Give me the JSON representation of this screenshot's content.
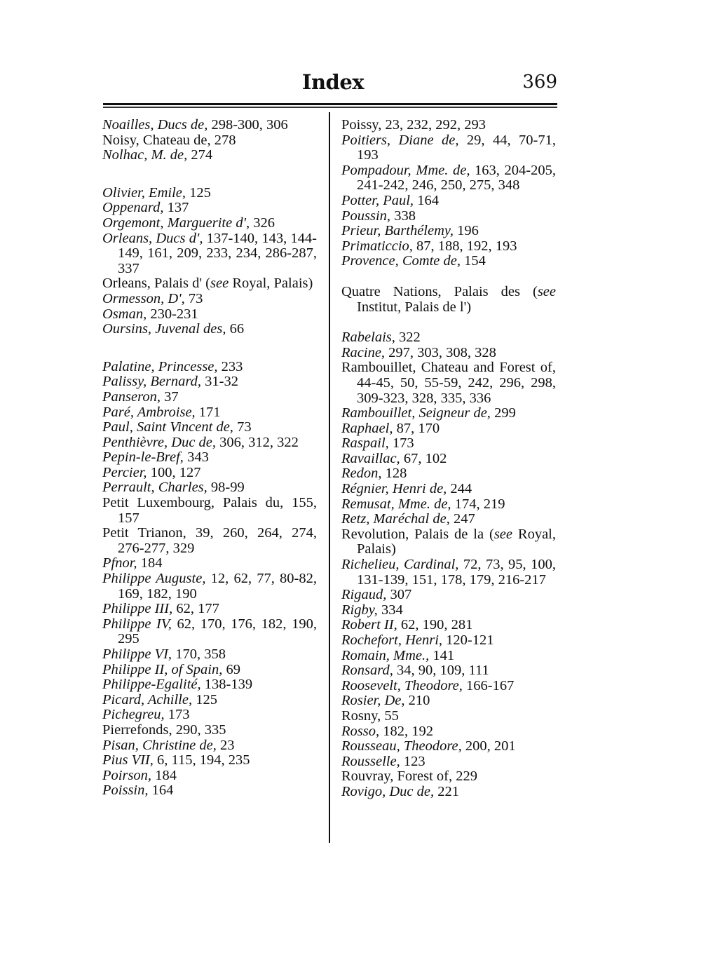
{
  "header": {
    "title": "Index",
    "page_number": "369"
  },
  "columns": [
    {
      "entries": [
        {
          "segments": [
            {
              "text": "Noailles, Ducs de,",
              "italic": true
            },
            {
              "text": " 298-300, 306"
            }
          ]
        },
        {
          "segments": [
            {
              "text": "Noisy, Chateau de, 278"
            }
          ]
        },
        {
          "segments": [
            {
              "text": "Nolhac, M. de,",
              "italic": true
            },
            {
              "text": " 274"
            }
          ]
        },
        {
          "gap": true,
          "segments": [
            {
              "text": "Olivier, Emile,",
              "italic": true
            },
            {
              "text": " 125"
            }
          ]
        },
        {
          "segments": [
            {
              "text": "Oppenard,",
              "italic": true
            },
            {
              "text": " 137"
            }
          ]
        },
        {
          "segments": [
            {
              "text": "Orgemont, Marguerite d',",
              "italic": true
            },
            {
              "text": " 326"
            }
          ]
        },
        {
          "segments": [
            {
              "text": "Orleans, Ducs d',",
              "italic": true
            },
            {
              "text": " 137-140, 143, 144-149, 161, 209, 233, 234, 286-287, 337"
            }
          ]
        },
        {
          "segments": [
            {
              "text": "Orleans, Palais d' ("
            },
            {
              "text": "see",
              "italic": true
            },
            {
              "text": " Royal, Palais)"
            }
          ]
        },
        {
          "segments": [
            {
              "text": "Ormesson, D',",
              "italic": true
            },
            {
              "text": " 73"
            }
          ]
        },
        {
          "segments": [
            {
              "text": "Osman,",
              "italic": true
            },
            {
              "text": " 230-231"
            }
          ]
        },
        {
          "segments": [
            {
              "text": "Oursins, Juvenal des,",
              "italic": true
            },
            {
              "text": " 66"
            }
          ]
        },
        {
          "gap": true,
          "segments": [
            {
              "text": "Palatine, Princesse,",
              "italic": true
            },
            {
              "text": " 233"
            }
          ]
        },
        {
          "segments": [
            {
              "text": "Palissy, Bernard,",
              "italic": true
            },
            {
              "text": " 31-32"
            }
          ]
        },
        {
          "segments": [
            {
              "text": "Panseron,",
              "italic": true
            },
            {
              "text": " 37"
            }
          ]
        },
        {
          "segments": [
            {
              "text": "Paré, Ambroise,",
              "italic": true
            },
            {
              "text": " 171"
            }
          ]
        },
        {
          "segments": [
            {
              "text": "Paul, Saint Vincent de,",
              "italic": true
            },
            {
              "text": " 73"
            }
          ]
        },
        {
          "segments": [
            {
              "text": "Penthièvre, Duc de,",
              "italic": true
            },
            {
              "text": " 306, 312, 322"
            }
          ]
        },
        {
          "segments": [
            {
              "text": "Pepin-le-Bref,",
              "italic": true
            },
            {
              "text": " 343"
            }
          ]
        },
        {
          "segments": [
            {
              "text": "Percier,",
              "italic": true
            },
            {
              "text": " 100, 127"
            }
          ]
        },
        {
          "segments": [
            {
              "text": "Perrault, Charles,",
              "italic": true
            },
            {
              "text": " 98-99"
            }
          ]
        },
        {
          "segments": [
            {
              "text": "Petit Luxembourg, Palais du, 155, 157"
            }
          ]
        },
        {
          "segments": [
            {
              "text": "Petit Trianon, 39, 260, 264, 274, 276-277, 329"
            }
          ]
        },
        {
          "segments": [
            {
              "text": "Pfnor,",
              "italic": true
            },
            {
              "text": " 184"
            }
          ]
        },
        {
          "segments": [
            {
              "text": "Philippe Auguste,",
              "italic": true
            },
            {
              "text": " 12, 62, 77, 80-82, 169, 182, 190"
            }
          ]
        },
        {
          "segments": [
            {
              "text": "Philippe III,",
              "italic": true
            },
            {
              "text": " 62, 177"
            }
          ]
        },
        {
          "segments": [
            {
              "text": "Philippe IV,",
              "italic": true
            },
            {
              "text": " 62, 170, 176, 182, 190, 295"
            }
          ]
        },
        {
          "segments": [
            {
              "text": "Philippe VI,",
              "italic": true
            },
            {
              "text": " 170, 358"
            }
          ]
        },
        {
          "segments": [
            {
              "text": "Philippe II, of Spain,",
              "italic": true
            },
            {
              "text": " 69"
            }
          ]
        },
        {
          "segments": [
            {
              "text": "Philippe-Egalité,",
              "italic": true
            },
            {
              "text": " 138-139"
            }
          ]
        },
        {
          "segments": [
            {
              "text": "Picard, Achille,",
              "italic": true
            },
            {
              "text": " 125"
            }
          ]
        },
        {
          "segments": [
            {
              "text": "Pichegreu,",
              "italic": true
            },
            {
              "text": " 173"
            }
          ]
        },
        {
          "segments": [
            {
              "text": "Pierrefonds, 290, 335"
            }
          ]
        },
        {
          "segments": [
            {
              "text": "Pisan, Christine de,",
              "italic": true
            },
            {
              "text": " 23"
            }
          ]
        },
        {
          "segments": [
            {
              "text": "Pius VII,",
              "italic": true
            },
            {
              "text": " 6, 115, 194, 235"
            }
          ]
        },
        {
          "segments": [
            {
              "text": "Poirson,",
              "italic": true
            },
            {
              "text": " 184"
            }
          ]
        },
        {
          "segments": [
            {
              "text": "Poissin,",
              "italic": true
            },
            {
              "text": " 164"
            }
          ]
        }
      ]
    },
    {
      "entries": [
        {
          "segments": [
            {
              "text": "Poissy, 23, 232, 292, 293"
            }
          ]
        },
        {
          "segments": [
            {
              "text": "Poitiers, Diane de,",
              "italic": true
            },
            {
              "text": " 29, 44, 70-71, 193"
            }
          ]
        },
        {
          "segments": [
            {
              "text": "Pompadour, Mme. de,",
              "italic": true
            },
            {
              "text": " 163, 204-205, 241-242, 246, 250, 275, 348"
            }
          ]
        },
        {
          "segments": [
            {
              "text": "Potter, Paul,",
              "italic": true
            },
            {
              "text": " 164"
            }
          ]
        },
        {
          "segments": [
            {
              "text": "Poussin,",
              "italic": true
            },
            {
              "text": " 338"
            }
          ]
        },
        {
          "segments": [
            {
              "text": "Prieur, Barthélemy,",
              "italic": true
            },
            {
              "text": " 196"
            }
          ]
        },
        {
          "segments": [
            {
              "text": "Primaticcio,",
              "italic": true
            },
            {
              "text": " 87, 188, 192, 193"
            }
          ]
        },
        {
          "segments": [
            {
              "text": "Provence, Comte de,",
              "italic": true
            },
            {
              "text": " 154"
            }
          ]
        },
        {
          "gap1": true,
          "segments": [
            {
              "text": "Quatre Nations, Palais des ("
            },
            {
              "text": "see",
              "italic": true
            },
            {
              "text": " Institut, Palais de l')"
            }
          ]
        },
        {
          "gap1": true,
          "segments": [
            {
              "text": "Rabelais,",
              "italic": true
            },
            {
              "text": " 322"
            }
          ]
        },
        {
          "segments": [
            {
              "text": "Racine,",
              "italic": true
            },
            {
              "text": " 297, 303, 308, 328"
            }
          ]
        },
        {
          "segments": [
            {
              "text": "Rambouillet, Chateau and Forest of, 44-45, 50, 55-59, 242, 296, 298, 309-323, 328, 335, 336"
            }
          ]
        },
        {
          "segments": [
            {
              "text": "Rambouillet, Seigneur de,",
              "italic": true
            },
            {
              "text": " 299"
            }
          ]
        },
        {
          "segments": [
            {
              "text": "Raphael,",
              "italic": true
            },
            {
              "text": " 87, 170"
            }
          ]
        },
        {
          "segments": [
            {
              "text": "Raspail,",
              "italic": true
            },
            {
              "text": " 173"
            }
          ]
        },
        {
          "segments": [
            {
              "text": "Ravaillac,",
              "italic": true
            },
            {
              "text": " 67, 102"
            }
          ]
        },
        {
          "segments": [
            {
              "text": "Redon,",
              "italic": true
            },
            {
              "text": " 128"
            }
          ]
        },
        {
          "segments": [
            {
              "text": "Régnier, Henri de,",
              "italic": true
            },
            {
              "text": " 244"
            }
          ]
        },
        {
          "segments": [
            {
              "text": "Remusat, Mme. de,",
              "italic": true
            },
            {
              "text": " 174, 219"
            }
          ]
        },
        {
          "segments": [
            {
              "text": "Retz, Maréchal de,",
              "italic": true
            },
            {
              "text": " 247"
            }
          ]
        },
        {
          "segments": [
            {
              "text": "Revolution, Palais de la ("
            },
            {
              "text": "see",
              "italic": true
            },
            {
              "text": " Royal, Palais)"
            }
          ]
        },
        {
          "segments": [
            {
              "text": "Richelieu, Cardinal,",
              "italic": true
            },
            {
              "text": " 72, 73, 95, 100, 131-139, 151, 178, 179, 216-217"
            }
          ]
        },
        {
          "segments": [
            {
              "text": "Rigaud,",
              "italic": true
            },
            {
              "text": " 307"
            }
          ]
        },
        {
          "segments": [
            {
              "text": "Rigby,",
              "italic": true
            },
            {
              "text": " 334"
            }
          ]
        },
        {
          "segments": [
            {
              "text": "Robert II,",
              "italic": true
            },
            {
              "text": " 62, 190, 281"
            }
          ]
        },
        {
          "segments": [
            {
              "text": "Rochefort, Henri,",
              "italic": true
            },
            {
              "text": " 120-121"
            }
          ]
        },
        {
          "segments": [
            {
              "text": "Romain, Mme.,",
              "italic": true
            },
            {
              "text": " 141"
            }
          ]
        },
        {
          "segments": [
            {
              "text": "Ronsard,",
              "italic": true
            },
            {
              "text": " 34, 90, 109, 111"
            }
          ]
        },
        {
          "segments": [
            {
              "text": "Roosevelt, Theodore,",
              "italic": true
            },
            {
              "text": " 166-167"
            }
          ]
        },
        {
          "segments": [
            {
              "text": "Rosier, De,",
              "italic": true
            },
            {
              "text": " 210"
            }
          ]
        },
        {
          "segments": [
            {
              "text": "Rosny, 55"
            }
          ]
        },
        {
          "segments": [
            {
              "text": "Rosso,",
              "italic": true
            },
            {
              "text": " 182, 192"
            }
          ]
        },
        {
          "segments": [
            {
              "text": "Rousseau, Theodore,",
              "italic": true
            },
            {
              "text": " 200, 201"
            }
          ]
        },
        {
          "segments": [
            {
              "text": "Rousselle,",
              "italic": true
            },
            {
              "text": " 123"
            }
          ]
        },
        {
          "segments": [
            {
              "text": "Rouvray, Forest of, 229"
            }
          ]
        },
        {
          "segments": [
            {
              "text": "Rovigo, Duc de,",
              "italic": true
            },
            {
              "text": " 221"
            }
          ]
        }
      ]
    }
  ]
}
